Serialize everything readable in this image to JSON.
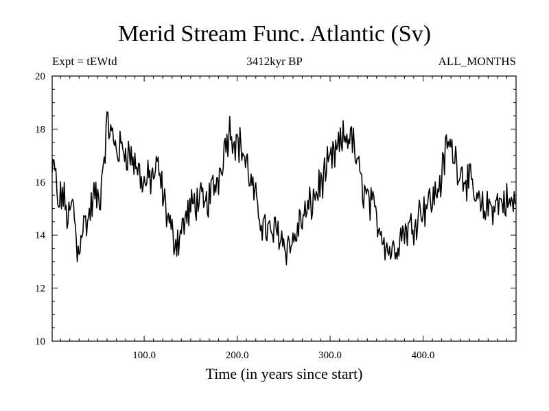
{
  "chart_data": {
    "type": "line",
    "title": "Merid Stream Func. Atlantic (Sv)",
    "subtitle_left": "Expt = tEWtd",
    "subtitle_center": "3412kyr BP",
    "subtitle_right": "ALL_MONTHS",
    "xlabel": "Time (in years since start)",
    "ylabel": "",
    "xlim": [
      1,
      500
    ],
    "ylim": [
      10,
      20
    ],
    "x_ticks": [
      100,
      200,
      300,
      400
    ],
    "x_tick_labels": [
      "100.0",
      "200.0",
      "300.0",
      "400.0"
    ],
    "y_ticks": [
      10,
      12,
      14,
      16,
      18,
      20
    ],
    "y_tick_labels": [
      "10",
      "12",
      "14",
      "16",
      "18",
      "20"
    ],
    "grid": false,
    "series": [
      {
        "name": "Merid Stream Func. Atlantic",
        "color": "#000000",
        "anchors": [
          [
            1,
            16.3
          ],
          [
            4,
            16.6
          ],
          [
            7,
            15.0
          ],
          [
            12,
            15.6
          ],
          [
            18,
            14.6
          ],
          [
            24,
            15.2
          ],
          [
            28,
            13.2
          ],
          [
            33,
            14.3
          ],
          [
            40,
            14.6
          ],
          [
            46,
            15.5
          ],
          [
            52,
            15.2
          ],
          [
            56,
            16.8
          ],
          [
            61,
            18.3
          ],
          [
            66,
            17.6
          ],
          [
            72,
            17.2
          ],
          [
            78,
            17.3
          ],
          [
            85,
            17.0
          ],
          [
            92,
            16.6
          ],
          [
            100,
            15.9
          ],
          [
            108,
            16.2
          ],
          [
            115,
            16.5
          ],
          [
            122,
            15.2
          ],
          [
            130,
            14.0
          ],
          [
            136,
            13.8
          ],
          [
            142,
            14.4
          ],
          [
            150,
            15.0
          ],
          [
            158,
            15.4
          ],
          [
            165,
            15.0
          ],
          [
            172,
            15.6
          ],
          [
            180,
            16.2
          ],
          [
            186,
            17.3
          ],
          [
            192,
            18.0
          ],
          [
            198,
            17.6
          ],
          [
            205,
            17.3
          ],
          [
            212,
            16.4
          ],
          [
            220,
            15.2
          ],
          [
            228,
            14.4
          ],
          [
            236,
            14.0
          ],
          [
            244,
            14.2
          ],
          [
            252,
            13.6
          ],
          [
            260,
            13.7
          ],
          [
            268,
            14.5
          ],
          [
            276,
            14.9
          ],
          [
            284,
            15.5
          ],
          [
            292,
            16.1
          ],
          [
            300,
            16.7
          ],
          [
            308,
            17.2
          ],
          [
            316,
            17.7
          ],
          [
            322,
            17.8
          ],
          [
            328,
            16.9
          ],
          [
            333,
            16.0
          ],
          [
            340,
            15.4
          ],
          [
            348,
            14.8
          ],
          [
            355,
            14.2
          ],
          [
            362,
            13.5
          ],
          [
            368,
            13.4
          ],
          [
            374,
            13.9
          ],
          [
            380,
            14.2
          ],
          [
            388,
            14.3
          ],
          [
            396,
            14.9
          ],
          [
            404,
            15.2
          ],
          [
            412,
            15.4
          ],
          [
            420,
            16.2
          ],
          [
            426,
            17.5
          ],
          [
            433,
            17.1
          ],
          [
            440,
            16.4
          ],
          [
            448,
            16.1
          ],
          [
            456,
            15.4
          ],
          [
            464,
            14.9
          ],
          [
            472,
            15.1
          ],
          [
            480,
            15.2
          ],
          [
            488,
            15.3
          ],
          [
            495,
            15.1
          ],
          [
            500,
            15.3
          ]
        ],
        "noise_amplitude": 0.6
      }
    ]
  }
}
